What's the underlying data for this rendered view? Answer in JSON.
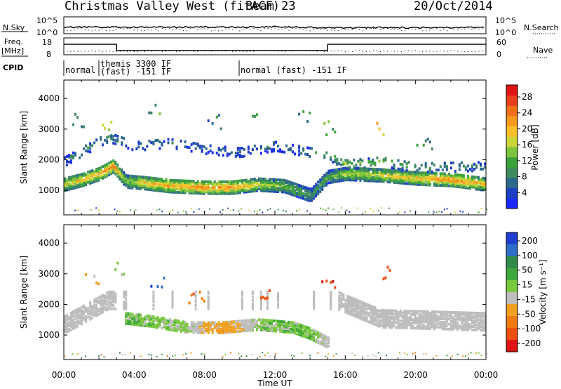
{
  "header": {
    "station": "Christmas Valley West (fitACF)",
    "beam": "Beam 23",
    "date": "20/Oct/2014"
  },
  "strips": {
    "nsky": {
      "label": "N.Sky",
      "ticks": [
        "10^5",
        "10^0"
      ],
      "right_ticks": [
        "10^5",
        "10^0"
      ],
      "right_label": "N.Search"
    },
    "freq": {
      "label_line1": "Freq.",
      "label_line2": "[MHz]",
      "ticks": [
        "18",
        "8"
      ],
      "right_ticks": [
        "60",
        "0"
      ],
      "right_label": "Nave"
    },
    "cpid": {
      "label": "CPID",
      "segments": [
        {
          "text": "normal",
          "start_h": 0,
          "end_h": 2.0
        },
        {
          "text_line1": "themis 3300 IF",
          "text_line2": "(fast) -151 IF",
          "start_h": 2.0,
          "end_h": 10.0
        },
        {
          "text": "normal (fast) -151 IF",
          "start_h": 10.0,
          "end_h": 24.0
        }
      ]
    }
  },
  "axes": {
    "xlabel": "Time UT",
    "ylabel": "Slant Range [km]",
    "x_ticks": [
      "00:00",
      "04:00",
      "08:00",
      "12:00",
      "16:00",
      "20:00",
      "00:00"
    ],
    "y_ticks": [
      "1000",
      "2000",
      "3000",
      "4000"
    ]
  },
  "colorbars": {
    "power": {
      "label": "Power [dB]",
      "ticks": [
        "4",
        "8",
        "12",
        "16",
        "20",
        "24",
        "28"
      ],
      "colors": [
        "#1a28ff",
        "#1c3fc4",
        "#2c6a8c",
        "#3f8a5e",
        "#3aa23a",
        "#7ec43c",
        "#c9d63a",
        "#f5c02a",
        "#f59a1e",
        "#f0701a",
        "#e8401c",
        "#e01414"
      ]
    },
    "velocity": {
      "label": "Velocity [m s⁻¹]",
      "ticks": [
        "200",
        "100",
        "50",
        "15",
        "-15",
        "-50",
        "-100",
        "-200"
      ],
      "colors": [
        "#1f3fd0",
        "#2e6ec8",
        "#2f8a4a",
        "#3fa83a",
        "#79c83e",
        "#bdbdbd",
        "#f0a020",
        "#f07a10",
        "#ee5010",
        "#e01414"
      ]
    }
  },
  "chart_data": [
    {
      "type": "heatmap",
      "title": "Power",
      "xlabel": "Time UT",
      "ylabel": "Slant Range [km]",
      "xlim_hours": [
        0,
        24
      ],
      "ylim_km": [
        200,
        4600
      ],
      "colorbar_label": "Power [dB]",
      "colorbar_range": [
        0,
        31
      ],
      "bands": [
        {
          "name": "main",
          "points": [
            [
              0,
              1250,
              18
            ],
            [
              1,
              1400,
              20
            ],
            [
              2,
              1600,
              22
            ],
            [
              2.8,
              1850,
              24
            ],
            [
              3.5,
              1350,
              14
            ],
            [
              4.5,
              1300,
              20
            ],
            [
              6,
              1200,
              22
            ],
            [
              8,
              1150,
              24
            ],
            [
              9.5,
              1150,
              23
            ],
            [
              11,
              1250,
              18
            ],
            [
              12.5,
              1200,
              14
            ],
            [
              14,
              900,
              10
            ],
            [
              15,
              1500,
              12
            ],
            [
              16,
              1600,
              16
            ],
            [
              18,
              1550,
              18
            ],
            [
              20,
              1450,
              20
            ],
            [
              22,
              1400,
              24
            ],
            [
              24,
              1250,
              20
            ]
          ]
        },
        {
          "name": "upper",
          "points": [
            [
              0,
              2000,
              8
            ],
            [
              2.5,
              2800,
              10
            ],
            [
              4,
              2500,
              8
            ],
            [
              6,
              2600,
              6
            ],
            [
              8,
              2400,
              6
            ],
            [
              10,
              2300,
              6
            ],
            [
              12,
              2500,
              6
            ],
            [
              15,
              2200,
              10
            ],
            [
              16,
              1900,
              14
            ],
            [
              18,
              2000,
              12
            ],
            [
              20,
              1800,
              10
            ],
            [
              24,
              1850,
              8
            ]
          ]
        },
        {
          "name": "scatter",
          "points": [
            [
              0.6,
              3300,
              4
            ],
            [
              2.4,
              3200,
              12
            ],
            [
              5,
              3600,
              6
            ],
            [
              8.5,
              3300,
              4
            ],
            [
              10.5,
              3700,
              4
            ],
            [
              13.5,
              3400,
              6
            ],
            [
              15.2,
              3100,
              8
            ],
            [
              18.2,
              3050,
              16
            ],
            [
              20.5,
              2600,
              6
            ]
          ]
        }
      ]
    },
    {
      "type": "heatmap",
      "title": "Velocity",
      "xlabel": "Time UT",
      "ylabel": "Slant Range [km]",
      "xlim_hours": [
        0,
        24
      ],
      "ylim_km": [
        200,
        4600
      ],
      "colorbar_label": "Velocity [m s⁻¹]",
      "colorbar_range": [
        -250,
        250
      ],
      "bands": [
        {
          "name": "ground-scatter",
          "points": [
            [
              0,
              1400,
              0
            ],
            [
              2.5,
              2200,
              0
            ],
            [
              15.5,
              2200,
              0
            ],
            [
              18,
              1600,
              0
            ],
            [
              24,
              1500,
              0
            ]
          ]
        },
        {
          "name": "main",
          "points": [
            [
              3.5,
              1600,
              40
            ],
            [
              5,
              1500,
              30
            ],
            [
              7,
              1300,
              20
            ],
            [
              8,
              1300,
              -60
            ],
            [
              9,
              1300,
              -80
            ],
            [
              10,
              1350,
              -50
            ],
            [
              11,
              1400,
              30
            ],
            [
              13,
              1300,
              40
            ],
            [
              14,
              1100,
              40
            ],
            [
              15,
              800,
              -30
            ]
          ]
        },
        {
          "name": "features",
          "points": [
            [
              5.2,
              2700,
              200
            ],
            [
              7.5,
              2300,
              -150
            ],
            [
              11.3,
              2300,
              -180
            ],
            [
              15,
              2600,
              -200
            ],
            [
              18.2,
              3100,
              -180
            ],
            [
              1.5,
              2800,
              -50
            ],
            [
              3,
              3200,
              20
            ]
          ]
        }
      ]
    },
    {
      "type": "line",
      "title": "N.Sky",
      "xlim_hours": [
        0,
        24
      ],
      "series": [
        {
          "name": "N.Sky",
          "x": [
            0,
            2,
            4,
            6,
            8,
            10,
            12,
            14,
            16,
            18,
            20,
            22,
            24
          ],
          "y": [
            200,
            220,
            180,
            210,
            230,
            200,
            250,
            180,
            150,
            170,
            160,
            170,
            200
          ]
        }
      ]
    },
    {
      "type": "line",
      "title": "Freq. [MHz]",
      "xlim_hours": [
        0,
        24
      ],
      "ylim": [
        8,
        18
      ],
      "series": [
        {
          "name": "Freq",
          "x": [
            0,
            3,
            3,
            15,
            15,
            24
          ],
          "y": [
            14.2,
            14.2,
            10.6,
            10.6,
            14.2,
            14.2
          ]
        }
      ]
    }
  ]
}
